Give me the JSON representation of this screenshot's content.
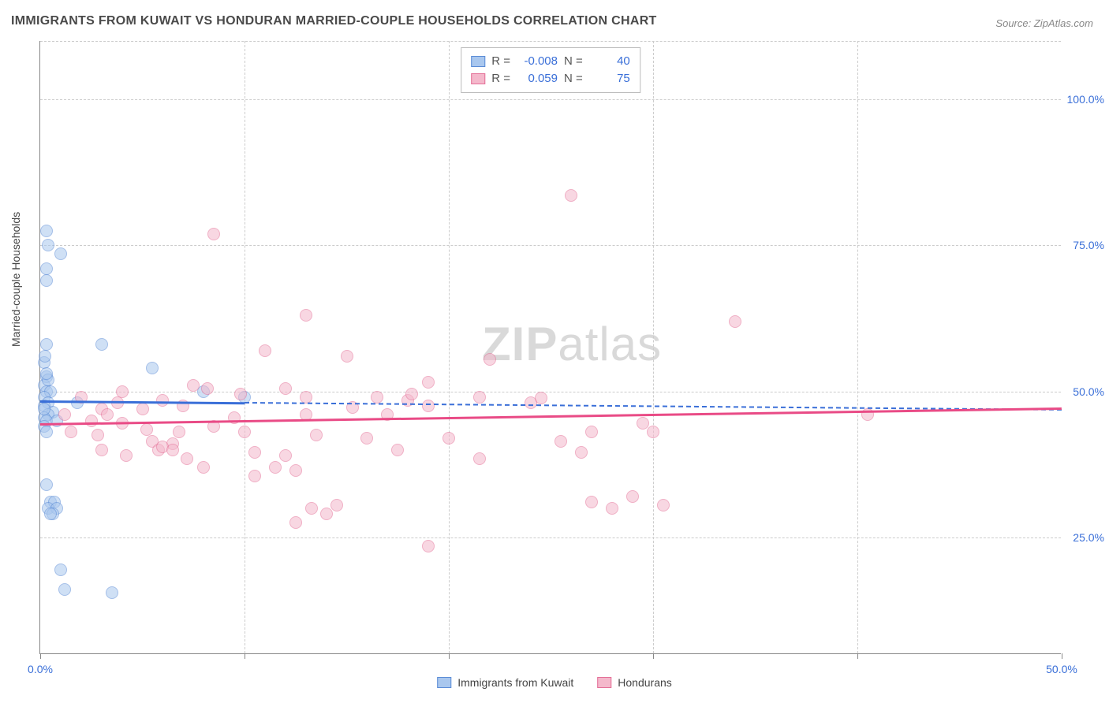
{
  "title": "IMMIGRANTS FROM KUWAIT VS HONDURAN MARRIED-COUPLE HOUSEHOLDS CORRELATION CHART",
  "source_label": "Source:",
  "source_name": "ZipAtlas.com",
  "ylabel": "Married-couple Households",
  "watermark_bold": "ZIP",
  "watermark_rest": "atlas",
  "chart": {
    "type": "scatter",
    "background_color": "#ffffff",
    "grid_color": "#cccccc",
    "axis_color": "#888888",
    "tick_color": "#3a6fd8",
    "xlim": [
      0,
      50
    ],
    "ylim": [
      5,
      110
    ],
    "xticks": [
      0,
      10,
      20,
      30,
      40,
      50
    ],
    "xtick_labels": [
      "0.0%",
      "",
      "",
      "",
      "",
      "50.0%"
    ],
    "yticks": [
      25,
      50,
      75,
      100
    ],
    "ytick_labels": [
      "25.0%",
      "50.0%",
      "75.0%",
      "100.0%"
    ],
    "marker_radius": 8,
    "marker_stroke_width": 1.5,
    "line_width": 2.5,
    "label_fontsize": 14,
    "title_fontsize": 16
  },
  "series": [
    {
      "name": "Immigrants from Kuwait",
      "fill": "#a9c7ee",
      "stroke": "#5b8cd6",
      "fill_opacity": 0.55,
      "legend": {
        "R_label": "R =",
        "R": "-0.008",
        "N_label": "N =",
        "N": "40"
      },
      "trend": {
        "x1": 0,
        "y1": 48.5,
        "x2": 10,
        "y2": 48.2,
        "color": "#3a6fd8",
        "dash_to_x": 50,
        "dash_to_y": 47.0
      },
      "points": [
        [
          0.3,
          77.5
        ],
        [
          0.4,
          75
        ],
        [
          1.0,
          73.5
        ],
        [
          0.3,
          71
        ],
        [
          0.3,
          69
        ],
        [
          0.3,
          58
        ],
        [
          0.2,
          55
        ],
        [
          0.3,
          52.5
        ],
        [
          0.2,
          51
        ],
        [
          3.0,
          58
        ],
        [
          0.3,
          50
        ],
        [
          0.5,
          50
        ],
        [
          0.2,
          49
        ],
        [
          0.4,
          48
        ],
        [
          0.2,
          47.5
        ],
        [
          0.6,
          46.5
        ],
        [
          0.4,
          46
        ],
        [
          0.2,
          45.5
        ],
        [
          0.3,
          45
        ],
        [
          0.8,
          45
        ],
        [
          0.2,
          44
        ],
        [
          0.3,
          43
        ],
        [
          1.8,
          48
        ],
        [
          5.5,
          54
        ],
        [
          8.0,
          50
        ],
        [
          10.0,
          49
        ],
        [
          0.3,
          34
        ],
        [
          0.5,
          31
        ],
        [
          0.7,
          31
        ],
        [
          0.4,
          30
        ],
        [
          0.8,
          30
        ],
        [
          0.6,
          29
        ],
        [
          0.5,
          29
        ],
        [
          1.0,
          19.5
        ],
        [
          1.2,
          16
        ],
        [
          3.5,
          15.5
        ],
        [
          0.2,
          47
        ],
        [
          0.4,
          52
        ],
        [
          0.25,
          56
        ],
        [
          0.3,
          53
        ]
      ]
    },
    {
      "name": "Hondurans",
      "fill": "#f4b8cb",
      "stroke": "#e46f97",
      "fill_opacity": 0.55,
      "legend": {
        "R_label": "R =",
        "R": "0.059",
        "N_label": "N =",
        "N": "75"
      },
      "trend": {
        "x1": 0,
        "y1": 44.5,
        "x2": 50,
        "y2": 47.2,
        "color": "#e94b86"
      },
      "points": [
        [
          8.5,
          77
        ],
        [
          26,
          83.5
        ],
        [
          34,
          62
        ],
        [
          13,
          63
        ],
        [
          11,
          57
        ],
        [
          15,
          56
        ],
        [
          22,
          55.5
        ],
        [
          18,
          48.5
        ],
        [
          13,
          46
        ],
        [
          19,
          47.5
        ],
        [
          17,
          46
        ],
        [
          20,
          42
        ],
        [
          24,
          48
        ],
        [
          24.5,
          48.8
        ],
        [
          21.5,
          49
        ],
        [
          27,
          43
        ],
        [
          28,
          30
        ],
        [
          29,
          32
        ],
        [
          30,
          43
        ],
        [
          30.5,
          30.5
        ],
        [
          19,
          23.5
        ],
        [
          14.5,
          30.5
        ],
        [
          14,
          29
        ],
        [
          12.5,
          27.5
        ],
        [
          13.3,
          30
        ],
        [
          13.5,
          42.5
        ],
        [
          10.5,
          35.5
        ],
        [
          12,
          39
        ],
        [
          10.5,
          39.5
        ],
        [
          11.5,
          37
        ],
        [
          8,
          37
        ],
        [
          6.5,
          41
        ],
        [
          5.5,
          41.5
        ],
        [
          8.5,
          44
        ],
        [
          9.5,
          45.5
        ],
        [
          7,
          47.5
        ],
        [
          5,
          47
        ],
        [
          4,
          50
        ],
        [
          3,
          47
        ],
        [
          6,
          48.5
        ],
        [
          4,
          44.5
        ],
        [
          3.3,
          46
        ],
        [
          2.5,
          45
        ],
        [
          2.8,
          42.5
        ],
        [
          5.8,
          40
        ],
        [
          2,
          49
        ],
        [
          1.5,
          43
        ],
        [
          3,
          40
        ],
        [
          1.2,
          46
        ],
        [
          4.2,
          39
        ],
        [
          5.2,
          43.5
        ],
        [
          6.8,
          43
        ],
        [
          8.2,
          50.5
        ],
        [
          9.8,
          49.5
        ],
        [
          7.5,
          51
        ],
        [
          3.8,
          48
        ],
        [
          16,
          42
        ],
        [
          17.5,
          40
        ],
        [
          18.2,
          49.5
        ],
        [
          16.5,
          49
        ],
        [
          15.3,
          47.2
        ],
        [
          21.5,
          38.5
        ],
        [
          25.5,
          41.5
        ],
        [
          26.5,
          39.5
        ],
        [
          13,
          49
        ],
        [
          27,
          31
        ],
        [
          29.5,
          44.5
        ],
        [
          12,
          50.5
        ],
        [
          19,
          51.5
        ],
        [
          40.5,
          46
        ],
        [
          6,
          40.5
        ],
        [
          6.5,
          40
        ],
        [
          7.2,
          38.5
        ],
        [
          12.5,
          36.5
        ],
        [
          10,
          43
        ]
      ]
    }
  ],
  "bottom_legend": [
    {
      "label": "Immigrants from Kuwait",
      "fill": "#a9c7ee",
      "stroke": "#5b8cd6"
    },
    {
      "label": "Hondurans",
      "fill": "#f4b8cb",
      "stroke": "#e46f97"
    }
  ]
}
